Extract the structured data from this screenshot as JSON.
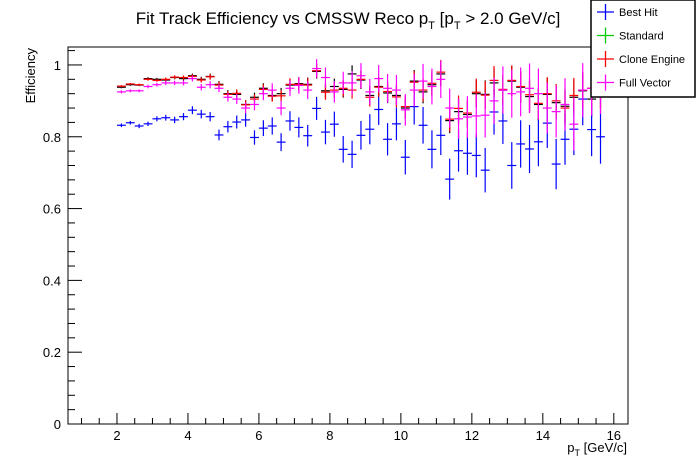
{
  "chart_data": {
    "type": "scatter",
    "title": "Fit Track Efficiency vs CMSSW Reco p",
    "title_sub": "T",
    "title_mid": " [p",
    "title_sub2": "T",
    "title_end": " > 2.0 GeV/c]",
    "xlabel": "p",
    "xlabel_sub": "T",
    "xlabel_end": " [GeV/c]",
    "ylabel": "Efficiency",
    "xlim": [
      0.62,
      16.4
    ],
    "ylim": [
      0,
      1.05
    ],
    "xticks": [
      "2",
      "4",
      "6",
      "8",
      "10",
      "12",
      "14",
      "16"
    ],
    "yticks": [
      "0",
      "0.2",
      "0.4",
      "0.6",
      "0.8",
      "1"
    ],
    "grid": false,
    "legend_position": "top-right",
    "x_start": 2.125,
    "x_step": 0.25,
    "series": [
      {
        "name": "Best Hit",
        "color": "#0000ff",
        "marker_color": "#0000ff",
        "values": [
          0.832,
          0.839,
          0.83,
          0.836,
          0.85,
          0.853,
          0.847,
          0.856,
          0.874,
          0.863,
          0.856,
          0.805,
          0.828,
          0.841,
          0.847,
          0.798,
          0.824,
          0.83,
          0.785,
          0.844,
          0.826,
          0.803,
          0.879,
          0.813,
          0.835,
          0.765,
          0.751,
          0.804,
          0.821,
          0.876,
          0.793,
          0.836,
          0.743,
          0.884,
          0.832,
          0.765,
          0.804,
          0.682,
          0.761,
          0.754,
          0.748,
          0.707,
          0.869,
          0.844,
          0.72,
          0.78,
          0.766,
          0.786,
          0.838,
          0.724,
          0.793,
          0.821,
          0.905,
          0.82,
          0.8
        ],
        "yerr": [
          0.005,
          0.005,
          0.006,
          0.006,
          0.007,
          0.008,
          0.009,
          0.01,
          0.011,
          0.012,
          0.013,
          0.015,
          0.016,
          0.018,
          0.019,
          0.02,
          0.022,
          0.024,
          0.025,
          0.027,
          0.028,
          0.03,
          0.032,
          0.034,
          0.035,
          0.037,
          0.038,
          0.04,
          0.042,
          0.043,
          0.045,
          0.046,
          0.048,
          0.05,
          0.051,
          0.053,
          0.055,
          0.057,
          0.058,
          0.06,
          0.061,
          0.062,
          0.063,
          0.064,
          0.065,
          0.066,
          0.067,
          0.068,
          0.069,
          0.07,
          0.071,
          0.072,
          0.073,
          0.074,
          0.075
        ]
      },
      {
        "name": "Standard",
        "color": "#00cc00",
        "marker_color": "#000000",
        "values": [
          0.938,
          0.945,
          0.944,
          0.962,
          0.96,
          0.958,
          0.965,
          0.962,
          0.97,
          0.96,
          0.968,
          0.946,
          0.92,
          0.918,
          0.89,
          0.91,
          0.935,
          0.915,
          0.92,
          0.944,
          0.948,
          0.946,
          0.982,
          0.928,
          0.94,
          0.932,
          0.975,
          0.958,
          0.915,
          0.94,
          0.922,
          0.915,
          0.88,
          0.955,
          0.925,
          0.945,
          0.975,
          0.845,
          0.87,
          0.862,
          0.92,
          0.918,
          0.95,
          0.93,
          0.955,
          0.938,
          0.912,
          0.89,
          0.918,
          0.895,
          0.885,
          0.91,
          0.928,
          0.905,
          0.93
        ],
        "yerr": [
          0.003,
          0.003,
          0.003,
          0.004,
          0.004,
          0.005,
          0.005,
          0.006,
          0.006,
          0.007,
          0.008,
          0.009,
          0.01,
          0.011,
          0.012,
          0.013,
          0.014,
          0.015,
          0.016,
          0.017,
          0.018,
          0.019,
          0.02,
          0.021,
          0.022,
          0.023,
          0.024,
          0.025,
          0.026,
          0.027,
          0.028,
          0.029,
          0.03,
          0.031,
          0.032,
          0.033,
          0.034,
          0.035,
          0.036,
          0.037,
          0.038,
          0.039,
          0.04,
          0.041,
          0.042,
          0.043,
          0.044,
          0.045,
          0.046,
          0.047,
          0.048,
          0.049,
          0.05,
          0.051,
          0.052
        ]
      },
      {
        "name": "Clone Engine",
        "color": "#ff0000",
        "marker_color": "#ff0000",
        "values": [
          0.941,
          0.947,
          0.945,
          0.96,
          0.957,
          0.96,
          0.966,
          0.965,
          0.968,
          0.958,
          0.967,
          0.944,
          0.918,
          0.921,
          0.889,
          0.905,
          0.932,
          0.913,
          0.914,
          0.946,
          0.946,
          0.944,
          0.984,
          0.924,
          0.93,
          0.935,
          0.93,
          0.96,
          0.91,
          0.938,
          0.926,
          0.911,
          0.884,
          0.952,
          0.93,
          0.949,
          0.98,
          0.849,
          0.879,
          0.866,
          0.924,
          0.916,
          0.957,
          0.932,
          0.957,
          0.94,
          0.917,
          0.893,
          0.92,
          0.9,
          0.88,
          0.915,
          0.93,
          0.935,
          0.93
        ],
        "yerr": [
          0.003,
          0.003,
          0.003,
          0.004,
          0.004,
          0.005,
          0.005,
          0.006,
          0.006,
          0.007,
          0.008,
          0.009,
          0.01,
          0.011,
          0.012,
          0.013,
          0.014,
          0.015,
          0.016,
          0.017,
          0.018,
          0.019,
          0.02,
          0.021,
          0.022,
          0.023,
          0.024,
          0.025,
          0.026,
          0.027,
          0.028,
          0.029,
          0.03,
          0.031,
          0.032,
          0.033,
          0.034,
          0.035,
          0.036,
          0.037,
          0.038,
          0.039,
          0.04,
          0.041,
          0.042,
          0.043,
          0.044,
          0.045,
          0.046,
          0.047,
          0.048,
          0.049,
          0.05,
          0.051,
          0.052
        ]
      },
      {
        "name": "Full Vector",
        "color": "#ff00ff",
        "marker_color": "#ff00ff",
        "values": [
          0.925,
          0.928,
          0.928,
          0.94,
          0.945,
          0.95,
          0.95,
          0.95,
          0.962,
          0.938,
          0.945,
          0.935,
          0.91,
          0.905,
          0.88,
          0.89,
          0.92,
          0.93,
          0.88,
          0.935,
          0.943,
          0.93,
          0.99,
          0.965,
          0.925,
          0.95,
          0.95,
          0.97,
          0.925,
          0.962,
          0.935,
          0.93,
          0.875,
          0.93,
          0.955,
          0.94,
          0.96,
          0.88,
          0.85,
          0.855,
          0.858,
          0.86,
          0.9,
          0.93,
          0.92,
          0.925,
          0.935,
          0.92,
          0.88,
          0.87,
          0.89,
          0.835,
          0.93,
          0.935,
          0.94
        ],
        "yerr": [
          0.004,
          0.004,
          0.004,
          0.005,
          0.005,
          0.006,
          0.006,
          0.007,
          0.008,
          0.009,
          0.01,
          0.011,
          0.012,
          0.014,
          0.015,
          0.016,
          0.018,
          0.019,
          0.02,
          0.022,
          0.023,
          0.025,
          0.026,
          0.028,
          0.03,
          0.031,
          0.033,
          0.035,
          0.036,
          0.038,
          0.04,
          0.042,
          0.044,
          0.046,
          0.048,
          0.05,
          0.052,
          0.054,
          0.056,
          0.058,
          0.06,
          0.062,
          0.064,
          0.066,
          0.067,
          0.068,
          0.069,
          0.07,
          0.071,
          0.072,
          0.073,
          0.074,
          0.075,
          0.076,
          0.077
        ]
      }
    ]
  }
}
